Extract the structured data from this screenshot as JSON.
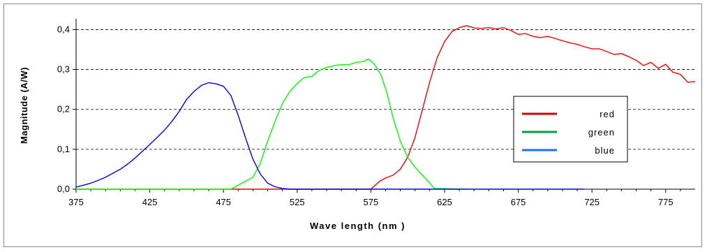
{
  "chart_data": {
    "type": "line",
    "xlabel": "Wave length (nm )",
    "ylabel": "Magnitude (A/W)",
    "xlim": [
      375,
      795
    ],
    "ylim": [
      0,
      0.42
    ],
    "x_ticks": [
      "375",
      "425",
      "475",
      "525",
      "575",
      "625",
      "675",
      "725",
      "775"
    ],
    "y_ticks": [
      "0,0",
      "0,1",
      "0,2",
      "0,3",
      "0,4"
    ],
    "grid": "horizontal dashed",
    "legend_position": "right",
    "series": [
      {
        "name": "red",
        "color": "#ff0000",
        "x": [
          375,
          575,
          578,
          581,
          585,
          590,
          595,
          600,
          605,
          610,
          615,
          620,
          625,
          630,
          635,
          640,
          645,
          650,
          655,
          660,
          665,
          670,
          675,
          680,
          685,
          690,
          695,
          700,
          705,
          710,
          715,
          720,
          725,
          730,
          735,
          740,
          745,
          750,
          755,
          760,
          765,
          770,
          775,
          780,
          785,
          790,
          795
        ],
        "y": [
          0,
          0,
          0.01,
          0.02,
          0.028,
          0.035,
          0.05,
          0.08,
          0.13,
          0.2,
          0.27,
          0.33,
          0.37,
          0.395,
          0.405,
          0.41,
          0.404,
          0.403,
          0.405,
          0.402,
          0.405,
          0.398,
          0.388,
          0.39,
          0.383,
          0.38,
          0.383,
          0.378,
          0.372,
          0.367,
          0.363,
          0.357,
          0.352,
          0.352,
          0.345,
          0.338,
          0.34,
          0.332,
          0.323,
          0.31,
          0.318,
          0.303,
          0.313,
          0.293,
          0.288,
          0.268,
          0.27
        ]
      },
      {
        "name": "green",
        "color": "#00ff00",
        "x": [
          375,
          480,
          485,
          490,
          495,
          500,
          505,
          510,
          515,
          520,
          525,
          530,
          535,
          540,
          545,
          550,
          555,
          560,
          565,
          570,
          573,
          575,
          578,
          582,
          586,
          590,
          595,
          600,
          605,
          610,
          615,
          618,
          640
        ],
        "y": [
          0,
          0,
          0.01,
          0.02,
          0.03,
          0.065,
          0.12,
          0.17,
          0.215,
          0.245,
          0.265,
          0.28,
          0.283,
          0.298,
          0.305,
          0.31,
          0.312,
          0.312,
          0.318,
          0.32,
          0.326,
          0.322,
          0.31,
          0.285,
          0.24,
          0.18,
          0.12,
          0.08,
          0.055,
          0.035,
          0.015,
          0.002,
          0
        ]
      },
      {
        "name": "blue",
        "color": "#0000ff",
        "x": [
          375,
          380,
          385,
          390,
          395,
          400,
          405,
          410,
          415,
          420,
          425,
          430,
          435,
          440,
          445,
          450,
          455,
          460,
          465,
          470,
          475,
          480,
          485,
          490,
          495,
          500,
          505,
          510,
          515,
          520,
          525,
          530,
          535,
          545,
          555,
          560,
          565,
          570,
          575,
          580,
          600,
          620,
          640,
          680,
          700,
          720
        ],
        "y": [
          0.005,
          0.01,
          0.015,
          0.022,
          0.03,
          0.04,
          0.05,
          0.063,
          0.078,
          0.095,
          0.112,
          0.13,
          0.148,
          0.17,
          0.195,
          0.225,
          0.245,
          0.26,
          0.267,
          0.264,
          0.258,
          0.235,
          0.185,
          0.128,
          0.075,
          0.038,
          0.015,
          0.006,
          0.002,
          0,
          0,
          0,
          0,
          0,
          0,
          0,
          0,
          0,
          0,
          0,
          0,
          0,
          0,
          0,
          0,
          0
        ]
      }
    ]
  }
}
